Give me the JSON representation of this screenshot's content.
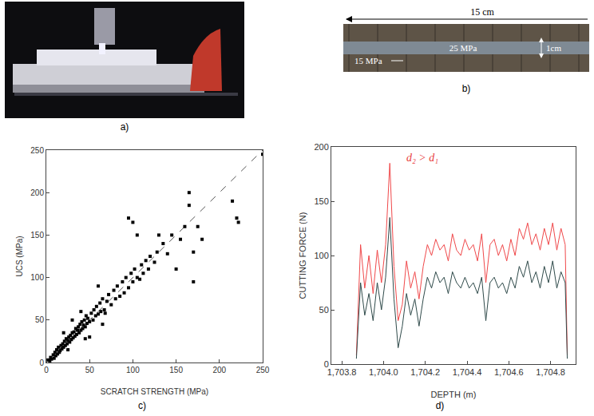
{
  "figure": {
    "photos": [
      {
        "panel": "a)"
      },
      {
        "panel": "b)",
        "scale": "15 cm",
        "labels": [
          "25 MPa",
          "15 MPa"
        ],
        "thickness": "1cm"
      }
    ]
  },
  "chart_data": [
    {
      "panel": "c)",
      "type": "scatter",
      "xlabel": "SCRATCH STRENGTH (MPa)",
      "ylabel": "UCS (MPa)",
      "xlim": [
        0,
        250
      ],
      "ylim": [
        0,
        250
      ],
      "xticks": [
        0,
        50,
        100,
        150,
        200,
        250
      ],
      "yticks": [
        0,
        50,
        100,
        150,
        200,
        250
      ],
      "grid": false,
      "series": [
        {
          "type": "line",
          "line_style": "dashed",
          "color": "#555555",
          "x": [
            0,
            250
          ],
          "values": [
            0,
            250
          ]
        },
        {
          "type": "scatter",
          "marker": "square",
          "color": "#000000",
          "x": [
            2,
            4,
            5,
            6,
            8,
            9,
            10,
            11,
            12,
            13,
            14,
            15,
            16,
            17,
            18,
            19,
            20,
            21,
            22,
            23,
            24,
            25,
            26,
            27,
            28,
            29,
            30,
            31,
            32,
            33,
            34,
            35,
            36,
            37,
            38,
            39,
            40,
            41,
            42,
            43,
            44,
            45,
            46,
            47,
            48,
            50,
            52,
            54,
            55,
            57,
            58,
            60,
            62,
            63,
            65,
            67,
            68,
            70,
            72,
            75,
            78,
            80,
            82,
            85,
            88,
            90,
            92,
            95,
            98,
            100,
            102,
            105,
            108,
            110,
            112,
            115,
            118,
            120,
            125,
            128,
            130,
            135,
            140,
            145,
            150,
            155,
            160,
            165,
            165,
            170,
            170,
            175,
            180,
            215,
            220,
            222,
            250,
            100,
            95,
            105,
            60,
            40,
            30,
            20,
            50,
            45,
            25,
            65
          ],
          "values": [
            3,
            2,
            6,
            4,
            9,
            5,
            12,
            8,
            15,
            10,
            18,
            12,
            14,
            20,
            16,
            22,
            18,
            25,
            20,
            28,
            22,
            26,
            30,
            24,
            32,
            27,
            35,
            29,
            36,
            31,
            40,
            33,
            38,
            42,
            35,
            45,
            38,
            48,
            40,
            44,
            50,
            42,
            55,
            46,
            52,
            48,
            58,
            50,
            62,
            55,
            66,
            57,
            70,
            60,
            75,
            62,
            58,
            72,
            80,
            68,
            85,
            75,
            90,
            78,
            95,
            82,
            100,
            88,
            105,
            95,
            110,
            100,
            98,
            115,
            105,
            120,
            110,
            125,
            118,
            130,
            150,
            140,
            128,
            150,
            110,
            145,
            160,
            185,
            200,
            95,
            130,
            160,
            145,
            190,
            170,
            165,
            245,
            165,
            170,
            150,
            90,
            60,
            50,
            35,
            30,
            28,
            15,
            45
          ]
        }
      ]
    },
    {
      "panel": "d)",
      "type": "line",
      "xlabel": "DEPTH (m)",
      "ylabel": "CUTTING FORCE (N)",
      "annotations": [
        {
          "text": "d₂ > d₁",
          "color": "#e8413f"
        }
      ],
      "xlim": [
        1703.75,
        1704.92
      ],
      "ylim": [
        0,
        200
      ],
      "xticks": [
        {
          "value": 1703.8,
          "label": "1,703.8"
        },
        {
          "value": 1704.0,
          "label": "1,704.0"
        },
        {
          "value": 1704.2,
          "label": "1,704.2"
        },
        {
          "value": 1704.4,
          "label": "1,704.4"
        },
        {
          "value": 1704.6,
          "label": "1,704.6"
        },
        {
          "value": 1704.8,
          "label": "1,704.8"
        }
      ],
      "yticks": [
        0,
        50,
        100,
        150,
        200
      ],
      "grid": false,
      "x": [
        1703.87,
        1703.89,
        1703.91,
        1703.93,
        1703.95,
        1703.97,
        1703.99,
        1704.01,
        1704.03,
        1704.05,
        1704.07,
        1704.09,
        1704.11,
        1704.13,
        1704.15,
        1704.17,
        1704.19,
        1704.21,
        1704.23,
        1704.25,
        1704.27,
        1704.29,
        1704.31,
        1704.33,
        1704.35,
        1704.37,
        1704.39,
        1704.41,
        1704.43,
        1704.45,
        1704.47,
        1704.49,
        1704.51,
        1704.53,
        1704.55,
        1704.57,
        1704.59,
        1704.61,
        1704.63,
        1704.65,
        1704.67,
        1704.69,
        1704.71,
        1704.73,
        1704.75,
        1704.77,
        1704.79,
        1704.81,
        1704.83,
        1704.85,
        1704.87,
        1704.88
      ],
      "series": [
        {
          "color": "#f0484a",
          "values": [
            8,
            110,
            70,
            100,
            65,
            105,
            75,
            110,
            185,
            90,
            40,
            55,
            95,
            70,
            85,
            60,
            90,
            110,
            100,
            115,
            105,
            110,
            95,
            120,
            105,
            100,
            115,
            105,
            110,
            95,
            120,
            75,
            110,
            115,
            100,
            110,
            95,
            115,
            100,
            125,
            115,
            130,
            110,
            120,
            105,
            125,
            110,
            130,
            105,
            125,
            110,
            8
          ]
        },
        {
          "color": "#2f4a4a",
          "values": [
            5,
            75,
            45,
            65,
            40,
            75,
            50,
            80,
            135,
            60,
            15,
            35,
            65,
            45,
            60,
            35,
            60,
            80,
            70,
            85,
            75,
            80,
            65,
            85,
            75,
            70,
            80,
            70,
            75,
            65,
            80,
            40,
            75,
            80,
            70,
            75,
            65,
            80,
            70,
            90,
            80,
            95,
            75,
            85,
            70,
            90,
            75,
            95,
            70,
            85,
            75,
            5
          ]
        }
      ]
    }
  ]
}
